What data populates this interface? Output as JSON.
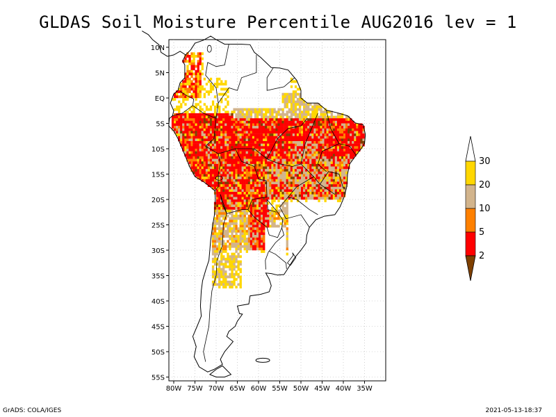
{
  "title": "GLDAS Soil Moisture Percentile AUG2016 lev = 1",
  "footer": {
    "left": "GrADS: COLA/IGES",
    "right": "2021-05-13-18:37"
  },
  "chart_data": {
    "type": "heatmap",
    "region": "South America",
    "x_range": [
      -81,
      -31
    ],
    "y_range": [
      -56,
      11
    ],
    "x_ticks": [
      "80W",
      "75W",
      "70W",
      "65W",
      "60W",
      "55W",
      "50W",
      "45W",
      "40W",
      "35W"
    ],
    "y_ticks": [
      "10N",
      "5N",
      "EQ",
      "5S",
      "10S",
      "15S",
      "20S",
      "25S",
      "30S",
      "35S",
      "40S",
      "45S",
      "50S",
      "55S"
    ],
    "grid": true,
    "colorbar": {
      "placement": "right",
      "levels": [
        "2",
        "5",
        "10",
        "20",
        "30"
      ],
      "colors": [
        "#7f4000",
        "#ff0000",
        "#ff8000",
        "#d2b48c",
        "#ffd700",
        "#ffffff"
      ]
    }
  }
}
